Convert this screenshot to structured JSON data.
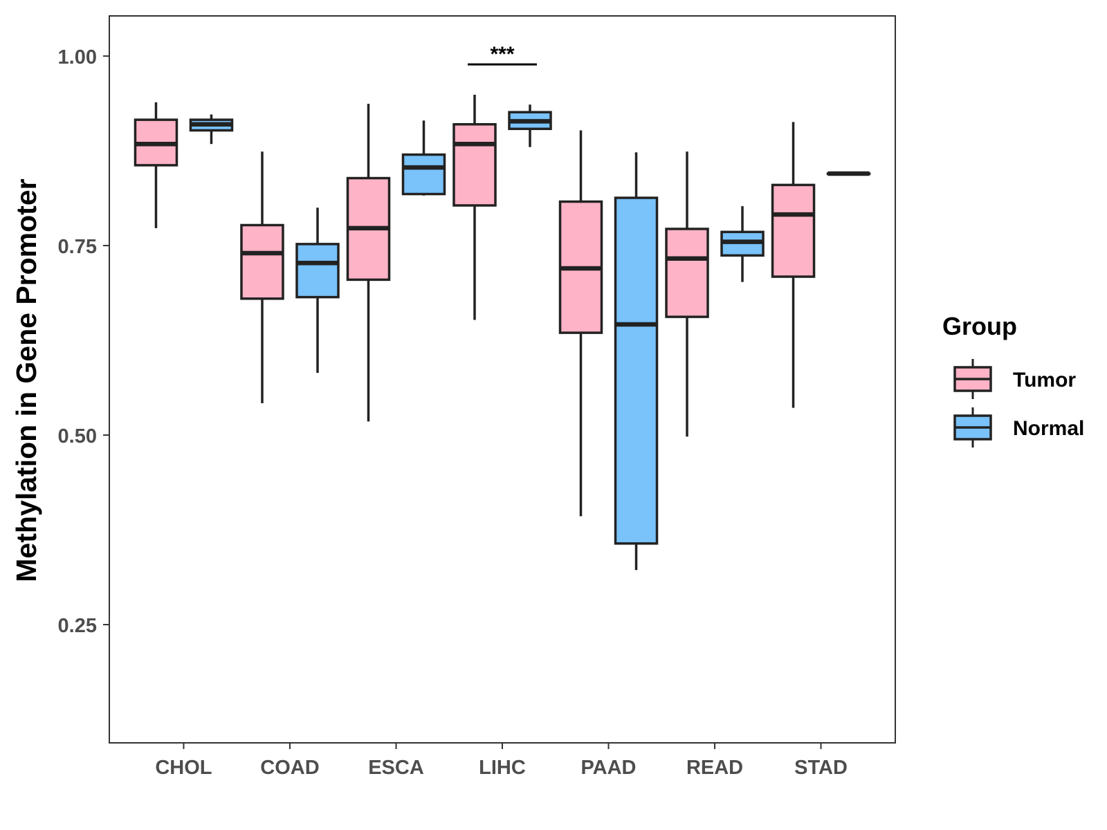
{
  "chart_data": {
    "type": "boxplot",
    "title": "",
    "xlabel": "",
    "ylabel": "Methylation in Gene Promoter",
    "ylim": [
      0.094,
      1.053
    ],
    "yticks": [
      0.25,
      0.5,
      0.75,
      1.0
    ],
    "ytick_labels": [
      "0.25",
      "0.50",
      "0.75",
      "1.00"
    ],
    "grid": false,
    "categories": [
      "CHOL",
      "COAD",
      "ESCA",
      "LIHC",
      "PAAD",
      "READ",
      "STAD"
    ],
    "legend": {
      "title": "Group",
      "position": "right",
      "entries": [
        "Tumor",
        "Normal"
      ]
    },
    "colors": {
      "Tumor": "#FFB3C6",
      "Normal": "#79C2FA",
      "outline": "#222222"
    },
    "series": [
      {
        "name": "Tumor",
        "boxes": [
          {
            "category": "CHOL",
            "min": 0.773,
            "q1": 0.856,
            "median": 0.884,
            "q3": 0.916,
            "max": 0.939
          },
          {
            "category": "COAD",
            "min": 0.542,
            "q1": 0.68,
            "median": 0.74,
            "q3": 0.777,
            "max": 0.874
          },
          {
            "category": "ESCA",
            "min": 0.518,
            "q1": 0.705,
            "median": 0.773,
            "q3": 0.839,
            "max": 0.937
          },
          {
            "category": "LIHC",
            "min": 0.652,
            "q1": 0.803,
            "median": 0.884,
            "q3": 0.91,
            "max": 0.949
          },
          {
            "category": "PAAD",
            "min": 0.393,
            "q1": 0.635,
            "median": 0.72,
            "q3": 0.808,
            "max": 0.902
          },
          {
            "category": "READ",
            "min": 0.498,
            "q1": 0.656,
            "median": 0.733,
            "q3": 0.772,
            "max": 0.874
          },
          {
            "category": "STAD",
            "min": 0.536,
            "q1": 0.709,
            "median": 0.791,
            "q3": 0.83,
            "max": 0.913
          }
        ]
      },
      {
        "name": "Normal",
        "boxes": [
          {
            "category": "CHOL",
            "min": 0.884,
            "q1": 0.902,
            "median": 0.91,
            "q3": 0.916,
            "max": 0.923
          },
          {
            "category": "COAD",
            "min": 0.582,
            "q1": 0.682,
            "median": 0.727,
            "q3": 0.752,
            "max": 0.8
          },
          {
            "category": "ESCA",
            "min": 0.816,
            "q1": 0.818,
            "median": 0.853,
            "q3": 0.87,
            "max": 0.915
          },
          {
            "category": "LIHC",
            "min": 0.88,
            "q1": 0.904,
            "median": 0.914,
            "q3": 0.926,
            "max": 0.936
          },
          {
            "category": "PAAD",
            "min": 0.322,
            "q1": 0.357,
            "median": 0.646,
            "q3": 0.813,
            "max": 0.873
          },
          {
            "category": "READ",
            "min": 0.702,
            "q1": 0.737,
            "median": 0.755,
            "q3": 0.768,
            "max": 0.802
          },
          {
            "category": "STAD",
            "min": 0.845,
            "q1": 0.845,
            "median": 0.845,
            "q3": 0.845,
            "max": 0.845
          }
        ]
      }
    ],
    "annotations": [
      {
        "category": "LIHC",
        "text": "***",
        "y": 0.989
      }
    ]
  }
}
